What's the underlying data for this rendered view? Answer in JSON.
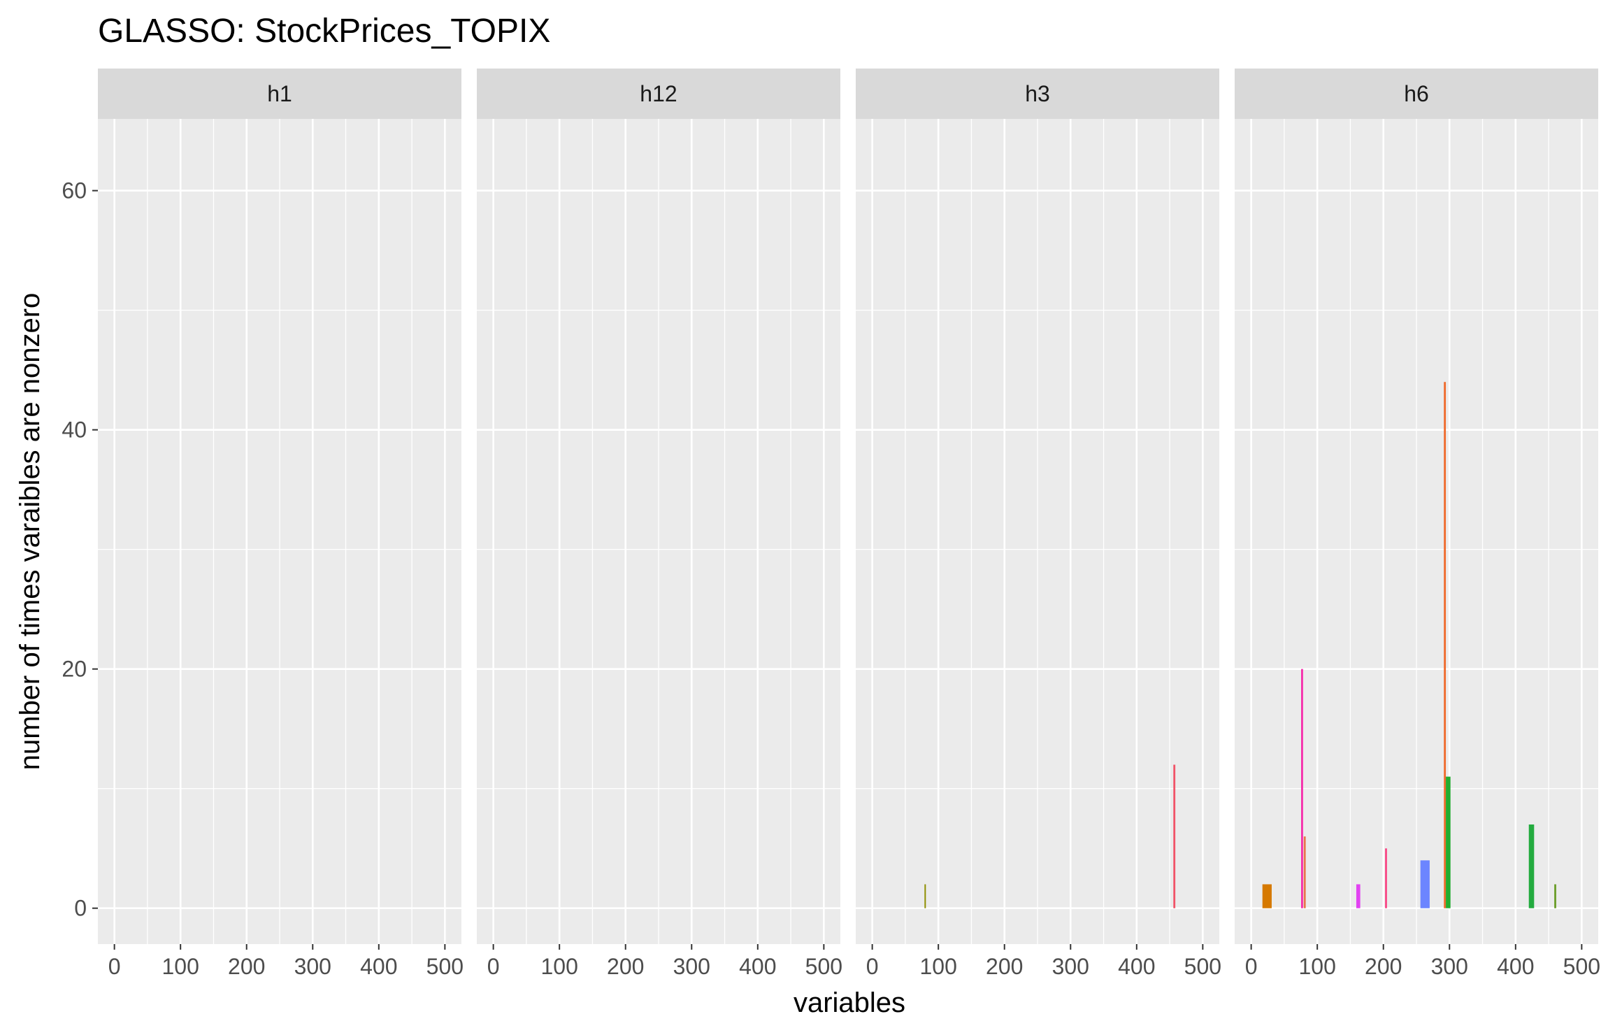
{
  "chart_data": {
    "type": "bar",
    "title": "GLASSO: StockPrices_TOPIX",
    "xlabel": "variables",
    "ylabel": "number of times varaibles are nonzero",
    "xlim": [
      -25,
      525
    ],
    "ylim": [
      -3,
      66
    ],
    "x_ticks": [
      "0",
      "100",
      "200",
      "300",
      "400",
      "500"
    ],
    "y_ticks": [
      "0",
      "20",
      "40",
      "60"
    ],
    "grid": true,
    "legend": "none",
    "panels": [
      {
        "label": "h1",
        "bars": []
      },
      {
        "label": "h12",
        "bars": []
      },
      {
        "label": "h3",
        "bars": [
          {
            "x": 80,
            "y": 2,
            "width": 2,
            "color": "#8f8f00"
          },
          {
            "x": 457,
            "y": 12,
            "width": 3,
            "color": "#f15468"
          }
        ]
      },
      {
        "label": "h6",
        "bars": [
          {
            "x": 24,
            "y": 2,
            "width": 14,
            "color": "#d67900"
          },
          {
            "x": 77,
            "y": 20,
            "width": 3,
            "color": "#f52fac"
          },
          {
            "x": 81,
            "y": 6,
            "width": 3,
            "color": "#e8744c"
          },
          {
            "x": 162,
            "y": 2,
            "width": 6,
            "color": "#e242f2"
          },
          {
            "x": 204,
            "y": 5,
            "width": 3,
            "color": "#f94a87"
          },
          {
            "x": 263,
            "y": 4,
            "width": 14,
            "color": "#6c85ff"
          },
          {
            "x": 293,
            "y": 44,
            "width": 3,
            "color": "#ef6b2c"
          },
          {
            "x": 298,
            "y": 11,
            "width": 7,
            "color": "#22ad2f"
          },
          {
            "x": 424,
            "y": 7,
            "width": 8,
            "color": "#23ab3f"
          },
          {
            "x": 460,
            "y": 2,
            "width": 3,
            "color": "#6c9e2b"
          }
        ]
      }
    ]
  },
  "theme": {
    "panel_background": "#ebebeb",
    "strip_background": "#d9d9d9",
    "grid_color": "#ffffff"
  }
}
